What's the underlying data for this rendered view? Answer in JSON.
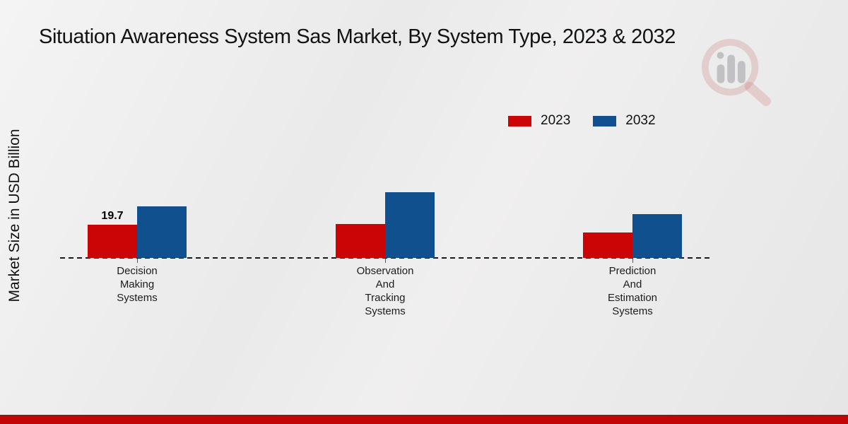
{
  "title": "Situation Awareness System Sas Market, By System Type, 2023 & 2032",
  "y_axis_label": "Market Size in USD Billion",
  "legend": {
    "items": [
      {
        "label": "2023",
        "color": "#cb0406"
      },
      {
        "label": "2032",
        "color": "#10508e"
      }
    ]
  },
  "watermark": {
    "icon": "magnifier-bar-chart-logo"
  },
  "footer": {
    "accent_color": "#c30505"
  },
  "chart_data": {
    "type": "bar",
    "title": "Situation Awareness System Sas Market, By System Type, 2023 & 2032",
    "xlabel": "",
    "ylabel": "Market Size in USD Billion",
    "categories": [
      "Decision Making Systems",
      "Observation And Tracking Systems",
      "Prediction And Estimation Systems"
    ],
    "category_label_lines": [
      [
        "Decision",
        "Making",
        "Systems"
      ],
      [
        "Observation",
        "And",
        "Tracking",
        "Systems"
      ],
      [
        "Prediction",
        "And",
        "Estimation",
        "Systems"
      ]
    ],
    "series": [
      {
        "name": "2023",
        "color": "#cb0406",
        "values": [
          19.7,
          20.1,
          15.1
        ],
        "value_labels": [
          "19.7",
          "",
          ""
        ]
      },
      {
        "name": "2032",
        "color": "#10508e",
        "values": [
          30.6,
          39.0,
          26.0
        ],
        "value_labels": [
          "",
          "",
          ""
        ]
      }
    ],
    "ylim": [
      0,
      45
    ],
    "grid": false,
    "baseline_style": "dashed",
    "legend_position": "upper right",
    "labeled_points": [
      {
        "category": "Decision Making Systems",
        "series": "2023",
        "label": "19.7"
      }
    ]
  }
}
